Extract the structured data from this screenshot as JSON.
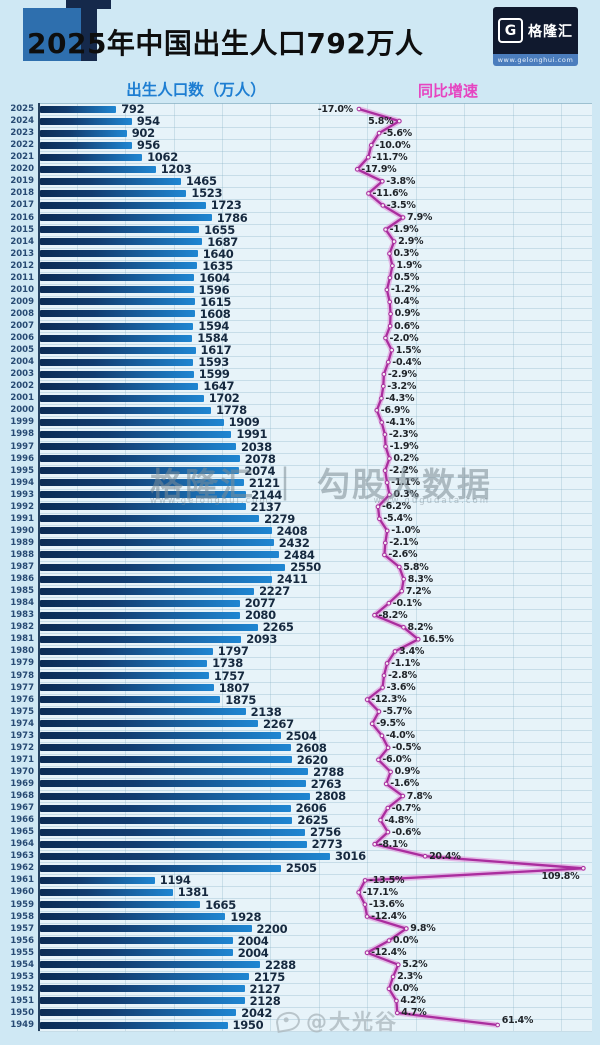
{
  "header": {
    "title": "2025年中国出生人口792万人",
    "logo": {
      "icon": "G",
      "brand": "格隆汇",
      "url": "www.gelonghui.com"
    }
  },
  "legend": {
    "bars_label": "出生人口数（万人）",
    "line_label": "同比增速",
    "bars_color": "#1e7ed2",
    "line_color": "#e645c1"
  },
  "watermarks": {
    "center_main": "格隆汇 ｜ 勾股大数据",
    "center_url_left": "www.gelonghui.com",
    "center_url_right": "www.gugudata.com",
    "bottom": "@大光谷"
  },
  "chart_data": {
    "type": "bar",
    "orientation": "horizontal-bars-with-line",
    "title": "2025年中国出生人口792万人",
    "categories": [
      2025,
      2024,
      2023,
      2022,
      2021,
      2020,
      2019,
      2018,
      2017,
      2016,
      2015,
      2014,
      2013,
      2012,
      2011,
      2010,
      2009,
      2008,
      2007,
      2006,
      2005,
      2004,
      2003,
      2002,
      2001,
      2000,
      1999,
      1998,
      1997,
      1996,
      1995,
      1994,
      1993,
      1992,
      1991,
      1990,
      1989,
      1988,
      1987,
      1986,
      1985,
      1984,
      1983,
      1982,
      1981,
      1980,
      1979,
      1978,
      1977,
      1976,
      1975,
      1974,
      1973,
      1972,
      1971,
      1970,
      1969,
      1968,
      1967,
      1966,
      1965,
      1964,
      1963,
      1962,
      1961,
      1960,
      1959,
      1958,
      1957,
      1956,
      1955,
      1954,
      1953,
      1952,
      1951,
      1950,
      1949
    ],
    "series": [
      {
        "name": "出生人口数（万人）",
        "type": "bar",
        "color_gradient": [
          "#0b2c55",
          "#1f86d2"
        ],
        "values": [
          792,
          954,
          902,
          956,
          1062,
          1203,
          1465,
          1523,
          1723,
          1786,
          1655,
          1687,
          1640,
          1635,
          1604,
          1596,
          1615,
          1608,
          1594,
          1584,
          1617,
          1593,
          1599,
          1647,
          1702,
          1778,
          1909,
          1991,
          2038,
          2078,
          2074,
          2121,
          2144,
          2137,
          2279,
          2408,
          2432,
          2484,
          2550,
          2411,
          2227,
          2077,
          2080,
          2265,
          2093,
          1797,
          1738,
          1757,
          1807,
          1875,
          2138,
          2267,
          2504,
          2608,
          2620,
          2788,
          2763,
          2808,
          2606,
          2625,
          2756,
          2773,
          3016,
          2505,
          1194,
          1381,
          1665,
          1928,
          2200,
          2004,
          2004,
          2288,
          2175,
          2127,
          2128,
          2042,
          1950
        ]
      },
      {
        "name": "同比增速",
        "type": "line",
        "unit": "%",
        "color": "#aa2d9e",
        "values": [
          -17.0,
          5.8,
          -5.6,
          -10.0,
          -11.7,
          -17.9,
          -3.8,
          -11.6,
          -3.5,
          7.9,
          -1.9,
          2.9,
          0.3,
          1.9,
          0.5,
          -1.2,
          0.4,
          0.9,
          0.6,
          -2.0,
          1.5,
          -0.4,
          -2.9,
          -3.2,
          -4.3,
          -6.9,
          -4.1,
          -2.3,
          -1.9,
          0.2,
          -2.2,
          -1.1,
          0.3,
          -6.2,
          -5.4,
          -1.0,
          -2.1,
          -2.6,
          5.8,
          8.3,
          7.2,
          -0.1,
          -8.2,
          8.2,
          16.5,
          3.4,
          -1.1,
          -2.8,
          -3.6,
          -12.3,
          -5.7,
          -9.5,
          -4.0,
          -0.5,
          -6.0,
          0.9,
          -1.6,
          7.8,
          -0.7,
          -4.8,
          -0.6,
          -8.1,
          20.4,
          109.8,
          -13.5,
          -17.1,
          -13.6,
          -12.4,
          9.8,
          0.0,
          -12.4,
          5.2,
          2.3,
          0.0,
          4.2,
          4.7,
          61.4
        ]
      }
    ],
    "value_labels_shown": true,
    "growth_axis_range_pct": [
      -17.9,
      109.8
    ],
    "grid": true,
    "legend_position": "top"
  }
}
